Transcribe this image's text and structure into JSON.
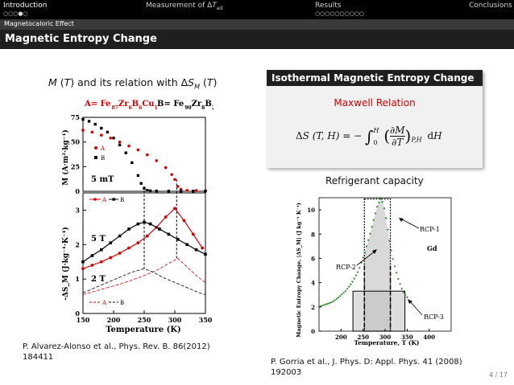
{
  "nav": {
    "sections": [
      "Introduction",
      "Measurement of ΔT_ad",
      "Results",
      "Conclusions"
    ],
    "dots": [
      "○○○●○",
      "",
      "○○○○○○○○○○",
      ""
    ]
  },
  "subsection": "Magnetocaloric Effect",
  "title": "Magnetic Entropy Change",
  "left": {
    "heading": "M (T) and its relation with ΔS_M (T)",
    "citation_line1": "P. Alvarez-Alonso et al., Phys. Rev. B. 86(2012)",
    "citation_line2": "184411",
    "fig": {
      "compA": "A= Fe",
      "compA_subs": [
        "87",
        "6",
        "6",
        "1"
      ],
      "compA_parts": [
        "Zr",
        "B",
        "Cu"
      ],
      "compB": "B= Fe",
      "compB_subs": [
        "90",
        "8",
        "2"
      ],
      "compB_parts": [
        "Zr",
        "B"
      ],
      "top_ylabel": "M (A·m²·kg⁻¹)",
      "top_yticks": [
        "75",
        "50",
        "25",
        "0"
      ],
      "top_legend": [
        "A",
        "B"
      ],
      "top_annotation": "5 mT",
      "bottom_ylabel": "-ΔS_M (J·kg⁻¹·K⁻¹)",
      "bottom_yticks": [
        "3",
        "2",
        "1",
        "0"
      ],
      "bottom_legend": [
        "A",
        "B"
      ],
      "annot_5T": "5 T",
      "annot_2T": "2 T",
      "xlabel": "Temperature (K)",
      "xticks": [
        "150",
        "200",
        "250",
        "300",
        "350"
      ]
    }
  },
  "right": {
    "block_title": "Isothermal Magnetic Entropy Change",
    "maxwell": "Maxwell Relation",
    "equation": "ΔS (T, H) = − ∫₀ᴴ (∂M/∂T)_{P,H} dH",
    "refrigerant": "Refrigerant capacity",
    "citation_line1": "P. Gorria et al., J. Phys. D: Appl. Phys. 41 (2008)",
    "citation_line2": "192003",
    "fig": {
      "ylabel": "Magnetic Entropy Change, |ΔS_M| (J kg⁻¹ K⁻¹)",
      "xlabel": "Temperature, T (K)",
      "yticks": [
        "10",
        "8",
        "6",
        "4",
        "2",
        "0"
      ],
      "xticks": [
        "200",
        "250",
        "300",
        "350",
        "400"
      ],
      "labels": [
        "RCP-1",
        "RCP-2",
        "RCP-3",
        "Gd"
      ]
    }
  },
  "page": "4 / 17",
  "chart_data": [
    {
      "type": "scatter",
      "title": "",
      "xlabel": "",
      "ylabel": "M (A·m²·kg⁻¹)",
      "xlim": [
        150,
        350
      ],
      "ylim": [
        0,
        75
      ],
      "series": [
        {
          "name": "A",
          "color": "#d40000",
          "x": [
            150,
            165,
            180,
            195,
            210,
            225,
            240,
            255,
            270,
            285,
            295,
            300,
            305,
            310,
            320,
            335,
            350
          ],
          "y": [
            62,
            60,
            57,
            54,
            50,
            46,
            42,
            37,
            31,
            24,
            17,
            12,
            5,
            2,
            1,
            0.8,
            0.6
          ]
        },
        {
          "name": "B",
          "color": "#000000",
          "x": [
            150,
            160,
            170,
            180,
            190,
            200,
            210,
            220,
            230,
            240,
            245,
            250,
            255,
            260,
            270,
            290,
            310,
            330,
            350
          ],
          "y": [
            73,
            71,
            68,
            64,
            60,
            54,
            47,
            39,
            29,
            16,
            8,
            3,
            1,
            0.5,
            0.3,
            0.2,
            0.2,
            0.2,
            0.2
          ]
        }
      ]
    },
    {
      "type": "line",
      "title": "",
      "xlabel": "Temperature (K)",
      "ylabel": "-ΔS_M (J·kg⁻¹·K⁻¹)",
      "xlim": [
        150,
        350
      ],
      "ylim": [
        0,
        3.5
      ],
      "series": [
        {
          "name": "A",
          "field": "5 T",
          "color": "#d40000",
          "x": [
            150,
            165,
            180,
            195,
            210,
            225,
            240,
            255,
            270,
            285,
            300,
            315,
            330,
            345
          ],
          "y": [
            1.3,
            1.4,
            1.5,
            1.62,
            1.75,
            1.9,
            2.05,
            2.25,
            2.5,
            2.8,
            3.05,
            2.7,
            2.3,
            1.9
          ]
        },
        {
          "name": "B",
          "field": "5 T",
          "color": "#000000",
          "x": [
            150,
            165,
            180,
            195,
            210,
            225,
            240,
            250,
            260,
            275,
            290,
            305,
            320,
            335,
            350
          ],
          "y": [
            1.5,
            1.68,
            1.85,
            2.05,
            2.25,
            2.45,
            2.6,
            2.65,
            2.6,
            2.45,
            2.3,
            2.15,
            2.0,
            1.85,
            1.72
          ]
        },
        {
          "name": "A",
          "field": "2 T",
          "color": "#d40000",
          "x": [
            150,
            170,
            190,
            210,
            230,
            250,
            270,
            290,
            305,
            320,
            335,
            350
          ],
          "y": [
            0.55,
            0.65,
            0.75,
            0.85,
            0.97,
            1.1,
            1.25,
            1.45,
            1.6,
            1.35,
            1.1,
            0.9
          ]
        },
        {
          "name": "B",
          "field": "2 T",
          "color": "#000000",
          "x": [
            150,
            170,
            190,
            210,
            230,
            250,
            265,
            280,
            300,
            320,
            340,
            350
          ],
          "y": [
            0.6,
            0.75,
            0.9,
            1.05,
            1.2,
            1.3,
            1.2,
            1.05,
            0.9,
            0.75,
            0.6,
            0.55
          ]
        }
      ]
    },
    {
      "type": "scatter",
      "title": "",
      "xlabel": "Temperature, T (K)",
      "ylabel": "Magnetic Entropy Change, |ΔS_M| (J kg⁻¹ K⁻¹)",
      "xlim": [
        150,
        450
      ],
      "ylim": [
        0,
        11
      ],
      "series": [
        {
          "name": "Gd",
          "color": "#2a8a2a",
          "x": [
            150,
            165,
            180,
            195,
            210,
            225,
            240,
            255,
            265,
            275,
            283,
            290,
            295,
            300,
            305,
            312,
            320,
            330,
            340,
            350
          ],
          "y": [
            2.0,
            2.2,
            2.4,
            2.8,
            3.3,
            4.0,
            5.0,
            6.6,
            7.9,
            9.3,
            10.4,
            10.9,
            10.6,
            9.8,
            8.6,
            7.0,
            5.6,
            4.3,
            3.3,
            2.8
          ]
        }
      ],
      "rcp_regions": [
        {
          "name": "RCP-1",
          "x_range": [
            253,
            312
          ],
          "height": 10.9
        },
        {
          "name": "RCP-2",
          "x_range": [
            253,
            312
          ],
          "height": 5.4
        },
        {
          "name": "RCP-3",
          "x_range": [
            227,
            345
          ],
          "height": 3.3
        }
      ]
    }
  ]
}
